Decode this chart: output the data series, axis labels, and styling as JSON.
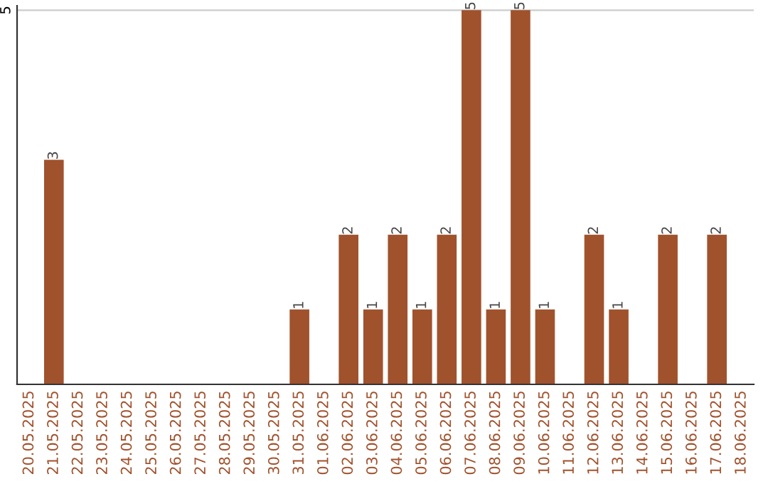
{
  "chart_data": {
    "type": "bar",
    "categories": [
      "20.05.2025",
      "21.05.2025",
      "22.05.2025",
      "23.05.2025",
      "24.05.2025",
      "25.05.2025",
      "26.05.2025",
      "27.05.2025",
      "28.05.2025",
      "29.05.2025",
      "30.05.2025",
      "31.05.2025",
      "01.06.2025",
      "02.06.2025",
      "03.06.2025",
      "04.06.2025",
      "05.06.2025",
      "06.06.2025",
      "07.06.2025",
      "08.06.2025",
      "09.06.2025",
      "10.06.2025",
      "11.06.2025",
      "12.06.2025",
      "13.06.2025",
      "14.06.2025",
      "15.06.2025",
      "16.06.2025",
      "17.06.2025",
      "18.06.2025"
    ],
    "values": [
      0,
      3,
      0,
      0,
      0,
      0,
      0,
      0,
      0,
      0,
      0,
      1,
      0,
      2,
      1,
      2,
      1,
      2,
      5,
      1,
      5,
      1,
      0,
      2,
      1,
      0,
      2,
      0,
      2,
      0
    ],
    "value_labels": [
      null,
      "3",
      null,
      null,
      null,
      null,
      null,
      null,
      null,
      null,
      null,
      "1",
      null,
      "2",
      "1",
      "2",
      "1",
      "2",
      "5",
      "1",
      "5",
      "1",
      null,
      "2",
      "1",
      null,
      "2",
      null,
      "2",
      null
    ],
    "color": "#a0522d",
    "ylim": [
      0,
      5.06
    ],
    "yticks": [
      5
    ],
    "grid": "y"
  }
}
